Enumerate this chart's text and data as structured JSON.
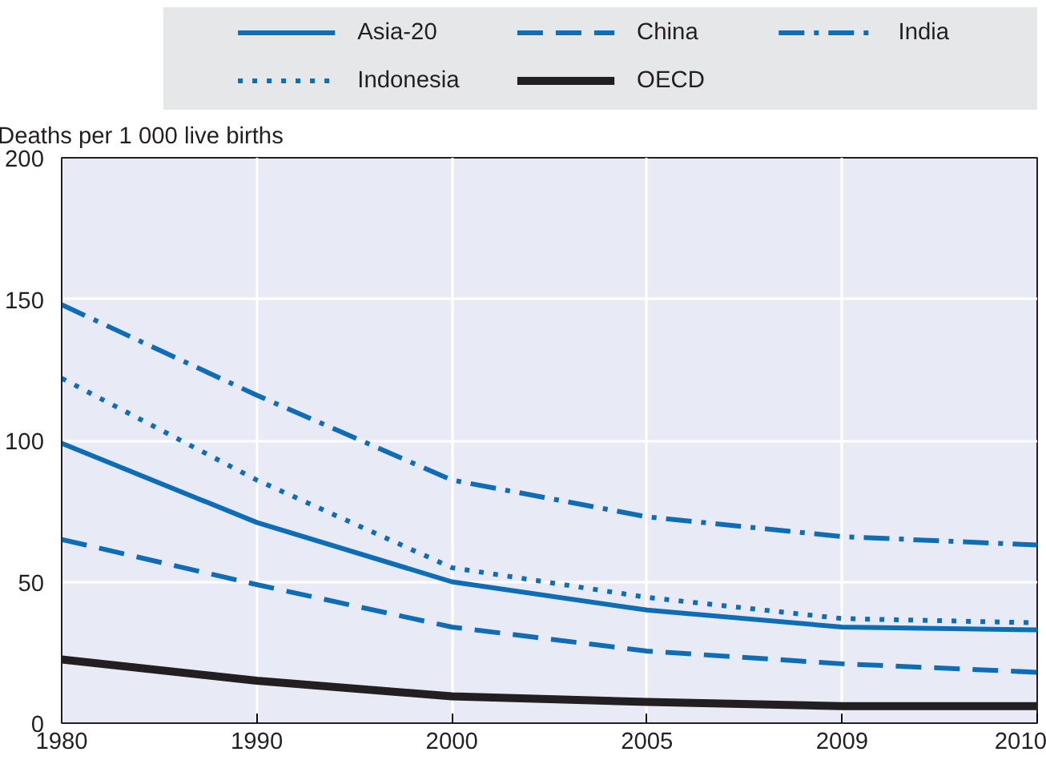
{
  "chart_data": {
    "type": "line",
    "ylabel": "Deaths per 1 000 live births",
    "categories": [
      "1980",
      "1990",
      "2000",
      "2005",
      "2009",
      "2010"
    ],
    "series": [
      {
        "name": "Asia-20",
        "color": "#0f6db5",
        "line_style": "solid",
        "values": [
          99,
          71,
          50,
          40,
          34,
          33
        ]
      },
      {
        "name": "China",
        "color": "#0f6db5",
        "line_style": "dashed",
        "values": [
          65,
          49,
          34,
          25.5,
          21,
          18
        ]
      },
      {
        "name": "India",
        "color": "#0f6db5",
        "line_style": "dashdot",
        "values": [
          148,
          116,
          86,
          73,
          66,
          63
        ]
      },
      {
        "name": "Indonesia",
        "color": "#0f6db5",
        "line_style": "dotted",
        "values": [
          122,
          86,
          55,
          44.5,
          37,
          35.5
        ]
      },
      {
        "name": "OECD",
        "color": "#231f20",
        "line_style": "solid",
        "values": [
          22.5,
          15,
          9.5,
          7.5,
          6,
          6
        ]
      }
    ],
    "ylim": [
      0,
      200
    ],
    "yticks": [
      0,
      50,
      100,
      150,
      200
    ],
    "grid": true,
    "legend": "top",
    "marker": "none"
  }
}
